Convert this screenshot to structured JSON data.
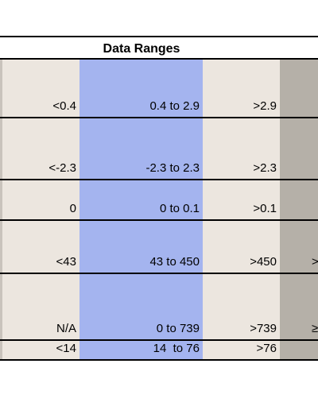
{
  "table": {
    "title": "Data Ranges",
    "rows": [
      [
        "<0.4",
        "0.4 to 2.9",
        ">2.9",
        ""
      ],
      [
        "<-2.3",
        "-2.3 to 2.3",
        ">2.3",
        ""
      ],
      [
        "0",
        "0 to 0.1",
        ">0.1",
        ""
      ],
      [
        "<43",
        "43 to 450",
        ">450",
        ">"
      ],
      [
        "N/A",
        "0 to 739",
        ">739",
        "≥"
      ],
      [
        "<14",
        "14  to 76",
        ">76",
        ""
      ]
    ]
  }
}
